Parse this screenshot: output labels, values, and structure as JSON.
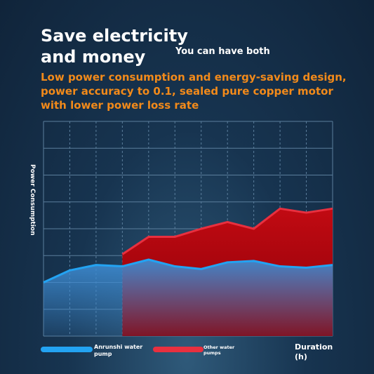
{
  "chart_data": {
    "type": "area",
    "title": "Save electricity\nand money",
    "subtitle": "You can have both",
    "description": "Low power consumption and energy-saving design, power accuracy to 0.1, sealed pure copper motor with lower power loss rate",
    "y_label": "Power Consumption",
    "x_label": "Duration (h)",
    "x": [
      0,
      1,
      2,
      3,
      4,
      5,
      6,
      7,
      8,
      9,
      10,
      11
    ],
    "xlim": [
      0,
      11
    ],
    "xticks": [
      0,
      1,
      2,
      3,
      4,
      5,
      6,
      7,
      8,
      9,
      10,
      11
    ],
    "ylim": [
      0,
      8
    ],
    "yticks": [
      0,
      1,
      2,
      3,
      4,
      5,
      6,
      7,
      8
    ],
    "grid": true,
    "series": [
      {
        "name": "Other water pumps",
        "color": "#e8303f",
        "values": [
          null,
          null,
          null,
          3.05,
          3.7,
          3.7,
          4.0,
          4.25,
          4.0,
          4.75,
          4.6,
          4.75
        ]
      },
      {
        "name": "Anrunshi water pump",
        "color": "#23a3f2",
        "values": [
          2.0,
          2.45,
          2.65,
          2.6,
          2.85,
          2.6,
          2.5,
          2.75,
          2.8,
          2.6,
          2.55,
          2.65
        ]
      }
    ]
  }
}
